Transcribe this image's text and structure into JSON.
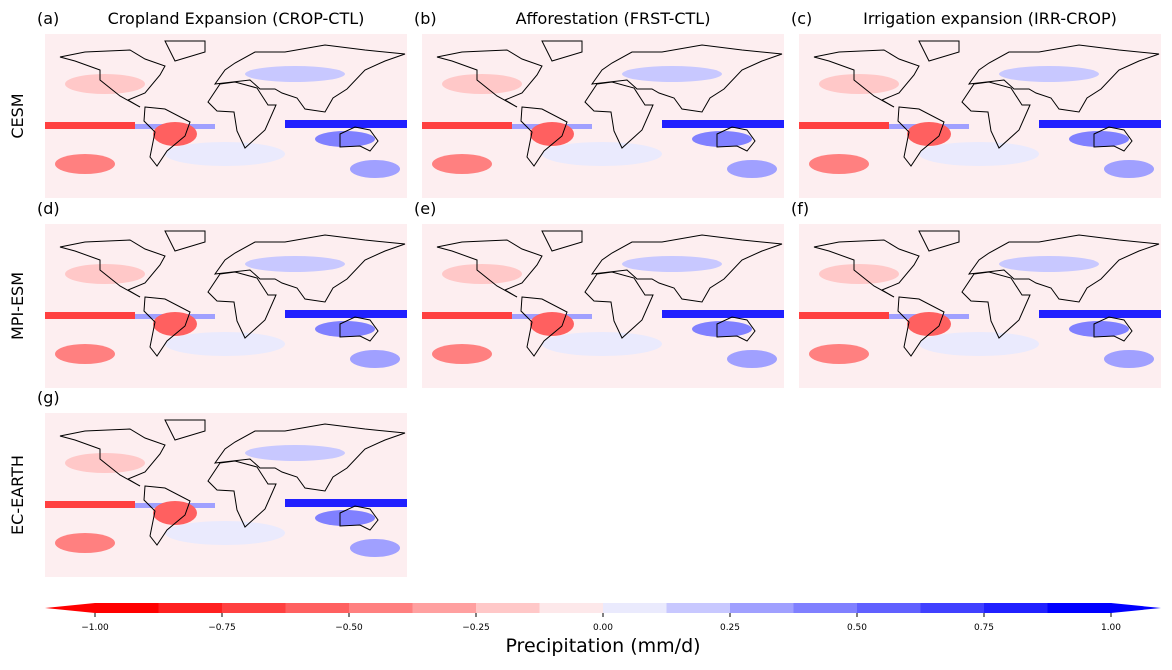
{
  "panels": [
    {
      "label": "(a)",
      "title": "Cropland Expansion (CROP-CTL)"
    },
    {
      "label": "(b)",
      "title": "Afforestation (FRST-CTL)"
    },
    {
      "label": "(c)",
      "title": "Irrigation expansion (IRR-CROP)"
    },
    {
      "label": "(d)"
    },
    {
      "label": "(e)"
    },
    {
      "label": "(f)"
    },
    {
      "label": "(g)"
    }
  ],
  "rows": [
    "CESM",
    "MPI-ESM",
    "EC-EARTH"
  ],
  "colorbar": {
    "label": "Precipitation (mm/d)",
    "lim": [
      -1,
      1
    ],
    "ticks": [
      {
        "value": -1,
        "label": "−1.00"
      },
      {
        "value": -0.75,
        "label": "−0.75"
      },
      {
        "value": -0.5,
        "label": "−0.50"
      },
      {
        "value": -0.25,
        "label": "−0.25"
      },
      {
        "value": 0,
        "label": "0.00"
      },
      {
        "value": 0.25,
        "label": "0.25"
      },
      {
        "value": 0.5,
        "label": "0.50"
      },
      {
        "value": 0.75,
        "label": "0.75"
      },
      {
        "value": 1,
        "label": "1.00"
      }
    ],
    "colors": [
      "#ff0000",
      "#ff2020",
      "#ff4040",
      "#ff6060",
      "#ff8080",
      "#ffa0a0",
      "#ffc8c8",
      "#fde8ea",
      "#eaeafd",
      "#c8c8ff",
      "#a0a0ff",
      "#8080ff",
      "#6060ff",
      "#4040ff",
      "#2020ff",
      "#0000ff"
    ]
  }
}
